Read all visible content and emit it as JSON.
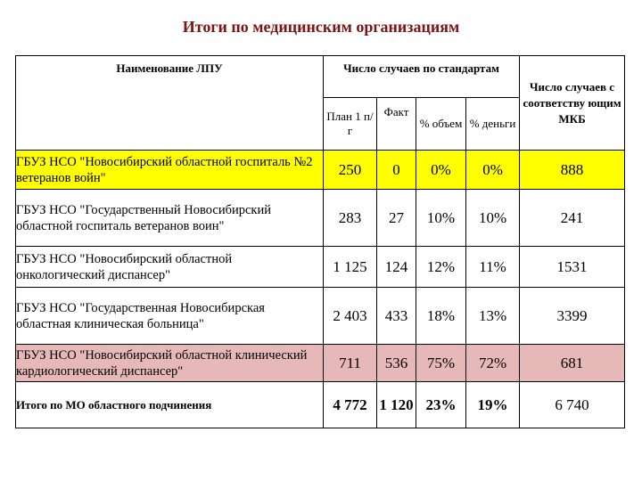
{
  "title": "Итоги по медицинским организациям",
  "headers": {
    "name": "Наименование ЛПУ",
    "standards_group": "Число случаев по стандартам",
    "plan": "План 1 п/г",
    "fact": "Факт",
    "pct_volume": "% объем",
    "pct_money": "% деньги",
    "mkb": "Число случаев с соответству ющим МКБ"
  },
  "rows": [
    {
      "name": "ГБУЗ НСО \"Новосибирский областной госпиталь №2 ветеранов войн\"",
      "plan": "250",
      "fact": "0",
      "pct_volume": "0%",
      "pct_money": "0%",
      "mkb": "888"
    },
    {
      "name": "ГБУЗ НСО \"Государственный Новосибирский областной госпиталь ветеранов воин\"",
      "plan": "283",
      "fact": "27",
      "pct_volume": "10%",
      "pct_money": "10%",
      "mkb": "241"
    },
    {
      "name": "ГБУЗ НСО \"Новосибирский областной онкологический диспансер\"",
      "plan": "1 125",
      "fact": "124",
      "pct_volume": "12%",
      "pct_money": "11%",
      "mkb": "1531"
    },
    {
      "name": "ГБУЗ НСО \"Государственная Новосибирская областная клиническая больница\"",
      "plan": "2 403",
      "fact": "433",
      "pct_volume": "18%",
      "pct_money": "13%",
      "mkb": "3399"
    },
    {
      "name": "ГБУЗ НСО \"Новосибирский областной клинический кардиологический диспансер\"",
      "plan": "711",
      "fact": "536",
      "pct_volume": "75%",
      "pct_money": "72%",
      "mkb": "681"
    }
  ],
  "total": {
    "name": "Итого по МО областного подчинения",
    "plan": "4 772",
    "fact": "1 120",
    "pct_volume": "23%",
    "pct_money": "19%",
    "mkb": "6 740"
  },
  "colors": {
    "title": "#7a1515",
    "highlight_yellow": "#ffff00",
    "highlight_pink": "#e6b9b8"
  }
}
